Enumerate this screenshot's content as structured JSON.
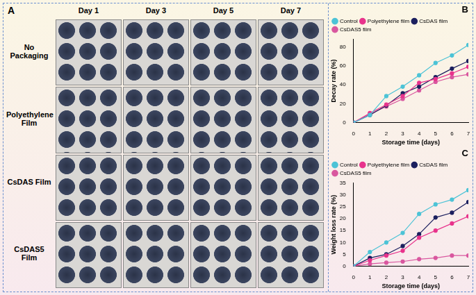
{
  "panel_a": {
    "label": "A",
    "columns": [
      "Day 1",
      "Day 3",
      "Day 5",
      "Day 7"
    ],
    "rows": [
      "No Packaging",
      "Polyethylene Film",
      "CsDAS Film",
      "CsDAS5 Film"
    ]
  },
  "chart_data": [
    {
      "type": "line",
      "title": "B",
      "x_label": "Storage time (days)",
      "y_label": "Decay rate (%)",
      "x": [
        0,
        1,
        2,
        3,
        4,
        5,
        6,
        7
      ],
      "series": [
        {
          "name": "Control",
          "color": "#4cc3d6",
          "values": [
            0,
            8,
            28,
            38,
            50,
            63,
            71,
            82
          ]
        },
        {
          "name": "Polyethylene film",
          "color": "#e8338c",
          "values": [
            0,
            10,
            19,
            28,
            42,
            46,
            52,
            59
          ]
        },
        {
          "name": "CsDAS film",
          "color": "#1b1f5e",
          "values": [
            0,
            8,
            18,
            31,
            38,
            48,
            57,
            65
          ]
        },
        {
          "name": "CsDAS5 film",
          "color": "#d9579f",
          "values": [
            0,
            9,
            17,
            25,
            34,
            43,
            48,
            51
          ]
        }
      ],
      "xlim": [
        0,
        7
      ],
      "xticks": [
        0,
        1,
        2,
        3,
        4,
        5,
        6,
        7
      ],
      "ylim": [
        0,
        88
      ],
      "yticks": [
        0,
        20,
        40,
        60,
        80
      ],
      "marker": "circle",
      "line_style": "solid",
      "grid": false,
      "legend": "upper left"
    },
    {
      "type": "line",
      "title": "C",
      "x_label": "Storage time (days)",
      "y_label": "Weight loss rate (%)",
      "x": [
        0,
        1,
        2,
        3,
        4,
        5,
        6,
        7
      ],
      "series": [
        {
          "name": "Control",
          "color": "#4cc3d6",
          "values": [
            0,
            6,
            10,
            14,
            22,
            26,
            28,
            32
          ]
        },
        {
          "name": "Polyethylene film",
          "color": "#e8338c",
          "values": [
            0,
            2.5,
            4.5,
            6.5,
            12,
            15,
            18,
            21
          ]
        },
        {
          "name": "CsDAS film",
          "color": "#1b1f5e",
          "values": [
            0,
            3.5,
            5,
            8.5,
            13.5,
            20.5,
            22.5,
            27
          ]
        },
        {
          "name": "CsDAS5 film",
          "color": "#d9579f",
          "values": [
            0,
            1,
            1.5,
            2,
            3,
            3.5,
            4.5,
            4.5
          ]
        }
      ],
      "xlim": [
        0,
        7
      ],
      "xticks": [
        0,
        1,
        2,
        3,
        4,
        5,
        6,
        7
      ],
      "ylim": [
        0,
        35
      ],
      "yticks": [
        0,
        5,
        10,
        15,
        20,
        25,
        30,
        35
      ],
      "marker": "circle",
      "line_style": "solid",
      "grid": false,
      "legend": "upper left"
    }
  ]
}
